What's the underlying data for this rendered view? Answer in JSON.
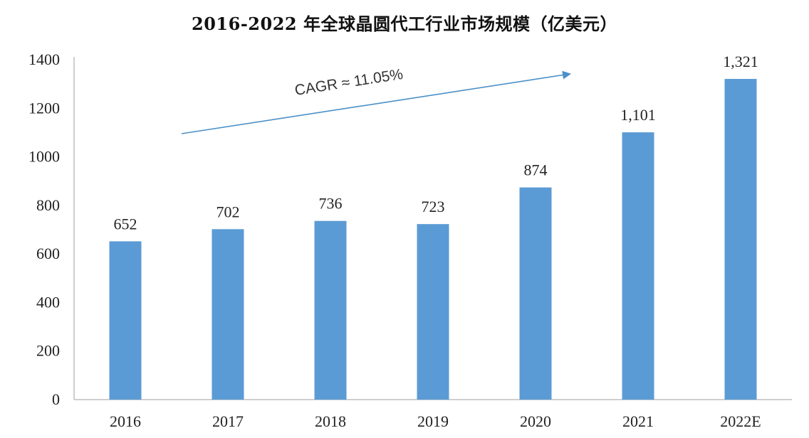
{
  "chart_data": {
    "type": "bar",
    "title": "2016-2022 年全球晶圆代工行业市场规模（亿美元）",
    "categories": [
      "2016",
      "2017",
      "2018",
      "2019",
      "2020",
      "2021",
      "2022E"
    ],
    "values": [
      652,
      702,
      736,
      723,
      874,
      1101,
      1321
    ],
    "data_labels": [
      "652",
      "702",
      "736",
      "723",
      "874",
      "1,101",
      "1,321"
    ],
    "ylim": [
      0,
      1400
    ],
    "yticks": [
      0,
      200,
      400,
      600,
      800,
      1000,
      1200,
      1400
    ],
    "grid": false,
    "legend": "none",
    "bar_color": "#5b9bd5",
    "annotation": {
      "text": "CAGR ≈ 11.05%",
      "arrow_color": "#4a90c8"
    }
  }
}
